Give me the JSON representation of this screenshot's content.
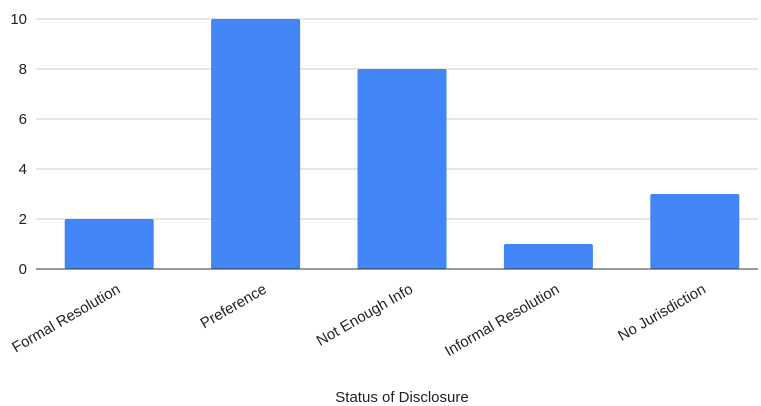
{
  "chart_data": {
    "type": "bar",
    "title": "",
    "xlabel": "Status of Disclosure",
    "ylabel": "",
    "categories": [
      "Formal Resolution",
      "Preference",
      "Not Enough Info",
      "Informal Resolution",
      "No Jurisdiction"
    ],
    "values": [
      2,
      10,
      8,
      1,
      3
    ],
    "ylim": [
      0,
      10
    ],
    "yticks": [
      0,
      2,
      4,
      6,
      8,
      10
    ],
    "grid": true,
    "legend": "none",
    "colors": {
      "bar": "#4285F4",
      "grid": "#cccccc",
      "axis": "#333333",
      "text": "#222222"
    }
  }
}
